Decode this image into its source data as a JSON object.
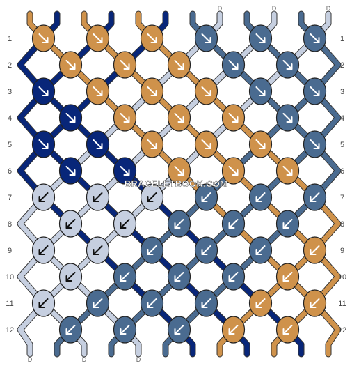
{
  "watermark": "BRACELETBOOK.COM",
  "colors": {
    "A": "#cf924b",
    "B": "#082679",
    "C": "#4a6b90",
    "D": "#c6cfe0"
  },
  "top_strings": [
    "A",
    "B",
    "A",
    "B",
    "A",
    "B",
    "C",
    "D",
    "C",
    "D",
    "C",
    "D"
  ],
  "bottom_strings": [
    "D",
    "C",
    "D",
    "C",
    "D",
    "C",
    "B",
    "A",
    "B",
    "A",
    "B",
    "A"
  ],
  "row_numbers": [
    "1",
    "2",
    "3",
    "4",
    "5",
    "6",
    "7",
    "8",
    "9",
    "10",
    "11",
    "12"
  ],
  "knots": [
    {
      "row": 1,
      "col": 0,
      "color": "A",
      "dir": "right"
    },
    {
      "row": 1,
      "col": 2,
      "color": "A",
      "dir": "right"
    },
    {
      "row": 1,
      "col": 4,
      "color": "A",
      "dir": "right"
    },
    {
      "row": 1,
      "col": 6,
      "color": "C",
      "dir": "right"
    },
    {
      "row": 1,
      "col": 8,
      "color": "C",
      "dir": "right"
    },
    {
      "row": 1,
      "col": 10,
      "color": "C",
      "dir": "right"
    },
    {
      "row": 2,
      "col": 1,
      "color": "A",
      "dir": "right"
    },
    {
      "row": 2,
      "col": 3,
      "color": "A",
      "dir": "right"
    },
    {
      "row": 2,
      "col": 5,
      "color": "A",
      "dir": "right"
    },
    {
      "row": 2,
      "col": 7,
      "color": "C",
      "dir": "right"
    },
    {
      "row": 2,
      "col": 9,
      "color": "C",
      "dir": "right"
    },
    {
      "row": 3,
      "col": 0,
      "color": "B",
      "dir": "right"
    },
    {
      "row": 3,
      "col": 2,
      "color": "A",
      "dir": "right"
    },
    {
      "row": 3,
      "col": 4,
      "color": "A",
      "dir": "right"
    },
    {
      "row": 3,
      "col": 6,
      "color": "A",
      "dir": "right"
    },
    {
      "row": 3,
      "col": 8,
      "color": "C",
      "dir": "right"
    },
    {
      "row": 3,
      "col": 10,
      "color": "C",
      "dir": "right"
    },
    {
      "row": 4,
      "col": 1,
      "color": "B",
      "dir": "right"
    },
    {
      "row": 4,
      "col": 3,
      "color": "A",
      "dir": "right"
    },
    {
      "row": 4,
      "col": 5,
      "color": "A",
      "dir": "right"
    },
    {
      "row": 4,
      "col": 7,
      "color": "A",
      "dir": "right"
    },
    {
      "row": 4,
      "col": 9,
      "color": "C",
      "dir": "right"
    },
    {
      "row": 5,
      "col": 0,
      "color": "B",
      "dir": "right"
    },
    {
      "row": 5,
      "col": 2,
      "color": "B",
      "dir": "right"
    },
    {
      "row": 5,
      "col": 4,
      "color": "A",
      "dir": "right"
    },
    {
      "row": 5,
      "col": 6,
      "color": "A",
      "dir": "right"
    },
    {
      "row": 5,
      "col": 8,
      "color": "A",
      "dir": "right"
    },
    {
      "row": 5,
      "col": 10,
      "color": "C",
      "dir": "right"
    },
    {
      "row": 6,
      "col": 1,
      "color": "B",
      "dir": "right"
    },
    {
      "row": 6,
      "col": 3,
      "color": "B",
      "dir": "right"
    },
    {
      "row": 6,
      "col": 5,
      "color": "A",
      "dir": "right"
    },
    {
      "row": 6,
      "col": 7,
      "color": "A",
      "dir": "right"
    },
    {
      "row": 6,
      "col": 9,
      "color": "A",
      "dir": "right"
    },
    {
      "row": 7,
      "col": 0,
      "color": "D",
      "dir": "left"
    },
    {
      "row": 7,
      "col": 2,
      "color": "D",
      "dir": "left"
    },
    {
      "row": 7,
      "col": 4,
      "color": "D",
      "dir": "left"
    },
    {
      "row": 7,
      "col": 6,
      "color": "C",
      "dir": "left"
    },
    {
      "row": 7,
      "col": 8,
      "color": "C",
      "dir": "left"
    },
    {
      "row": 7,
      "col": 10,
      "color": "C",
      "dir": "left"
    },
    {
      "row": 8,
      "col": 1,
      "color": "D",
      "dir": "left"
    },
    {
      "row": 8,
      "col": 3,
      "color": "D",
      "dir": "left"
    },
    {
      "row": 8,
      "col": 5,
      "color": "C",
      "dir": "left"
    },
    {
      "row": 8,
      "col": 7,
      "color": "C",
      "dir": "left"
    },
    {
      "row": 8,
      "col": 9,
      "color": "C",
      "dir": "left"
    },
    {
      "row": 9,
      "col": 0,
      "color": "D",
      "dir": "left"
    },
    {
      "row": 9,
      "col": 2,
      "color": "D",
      "dir": "left"
    },
    {
      "row": 9,
      "col": 4,
      "color": "C",
      "dir": "left"
    },
    {
      "row": 9,
      "col": 6,
      "color": "C",
      "dir": "left"
    },
    {
      "row": 9,
      "col": 8,
      "color": "C",
      "dir": "left"
    },
    {
      "row": 9,
      "col": 10,
      "color": "A",
      "dir": "left"
    },
    {
      "row": 10,
      "col": 1,
      "color": "D",
      "dir": "left"
    },
    {
      "row": 10,
      "col": 3,
      "color": "C",
      "dir": "left"
    },
    {
      "row": 10,
      "col": 5,
      "color": "C",
      "dir": "left"
    },
    {
      "row": 10,
      "col": 7,
      "color": "C",
      "dir": "left"
    },
    {
      "row": 10,
      "col": 9,
      "color": "A",
      "dir": "left"
    },
    {
      "row": 11,
      "col": 0,
      "color": "D",
      "dir": "left"
    },
    {
      "row": 11,
      "col": 2,
      "color": "C",
      "dir": "left"
    },
    {
      "row": 11,
      "col": 4,
      "color": "C",
      "dir": "left"
    },
    {
      "row": 11,
      "col": 6,
      "color": "C",
      "dir": "left"
    },
    {
      "row": 11,
      "col": 8,
      "color": "A",
      "dir": "left"
    },
    {
      "row": 11,
      "col": 10,
      "color": "A",
      "dir": "left"
    },
    {
      "row": 12,
      "col": 1,
      "color": "C",
      "dir": "left"
    },
    {
      "row": 12,
      "col": 3,
      "color": "C",
      "dir": "left"
    },
    {
      "row": 12,
      "col": 5,
      "color": "C",
      "dir": "left"
    },
    {
      "row": 12,
      "col": 7,
      "color": "A",
      "dir": "left"
    },
    {
      "row": 12,
      "col": 9,
      "color": "A",
      "dir": "left"
    }
  ]
}
